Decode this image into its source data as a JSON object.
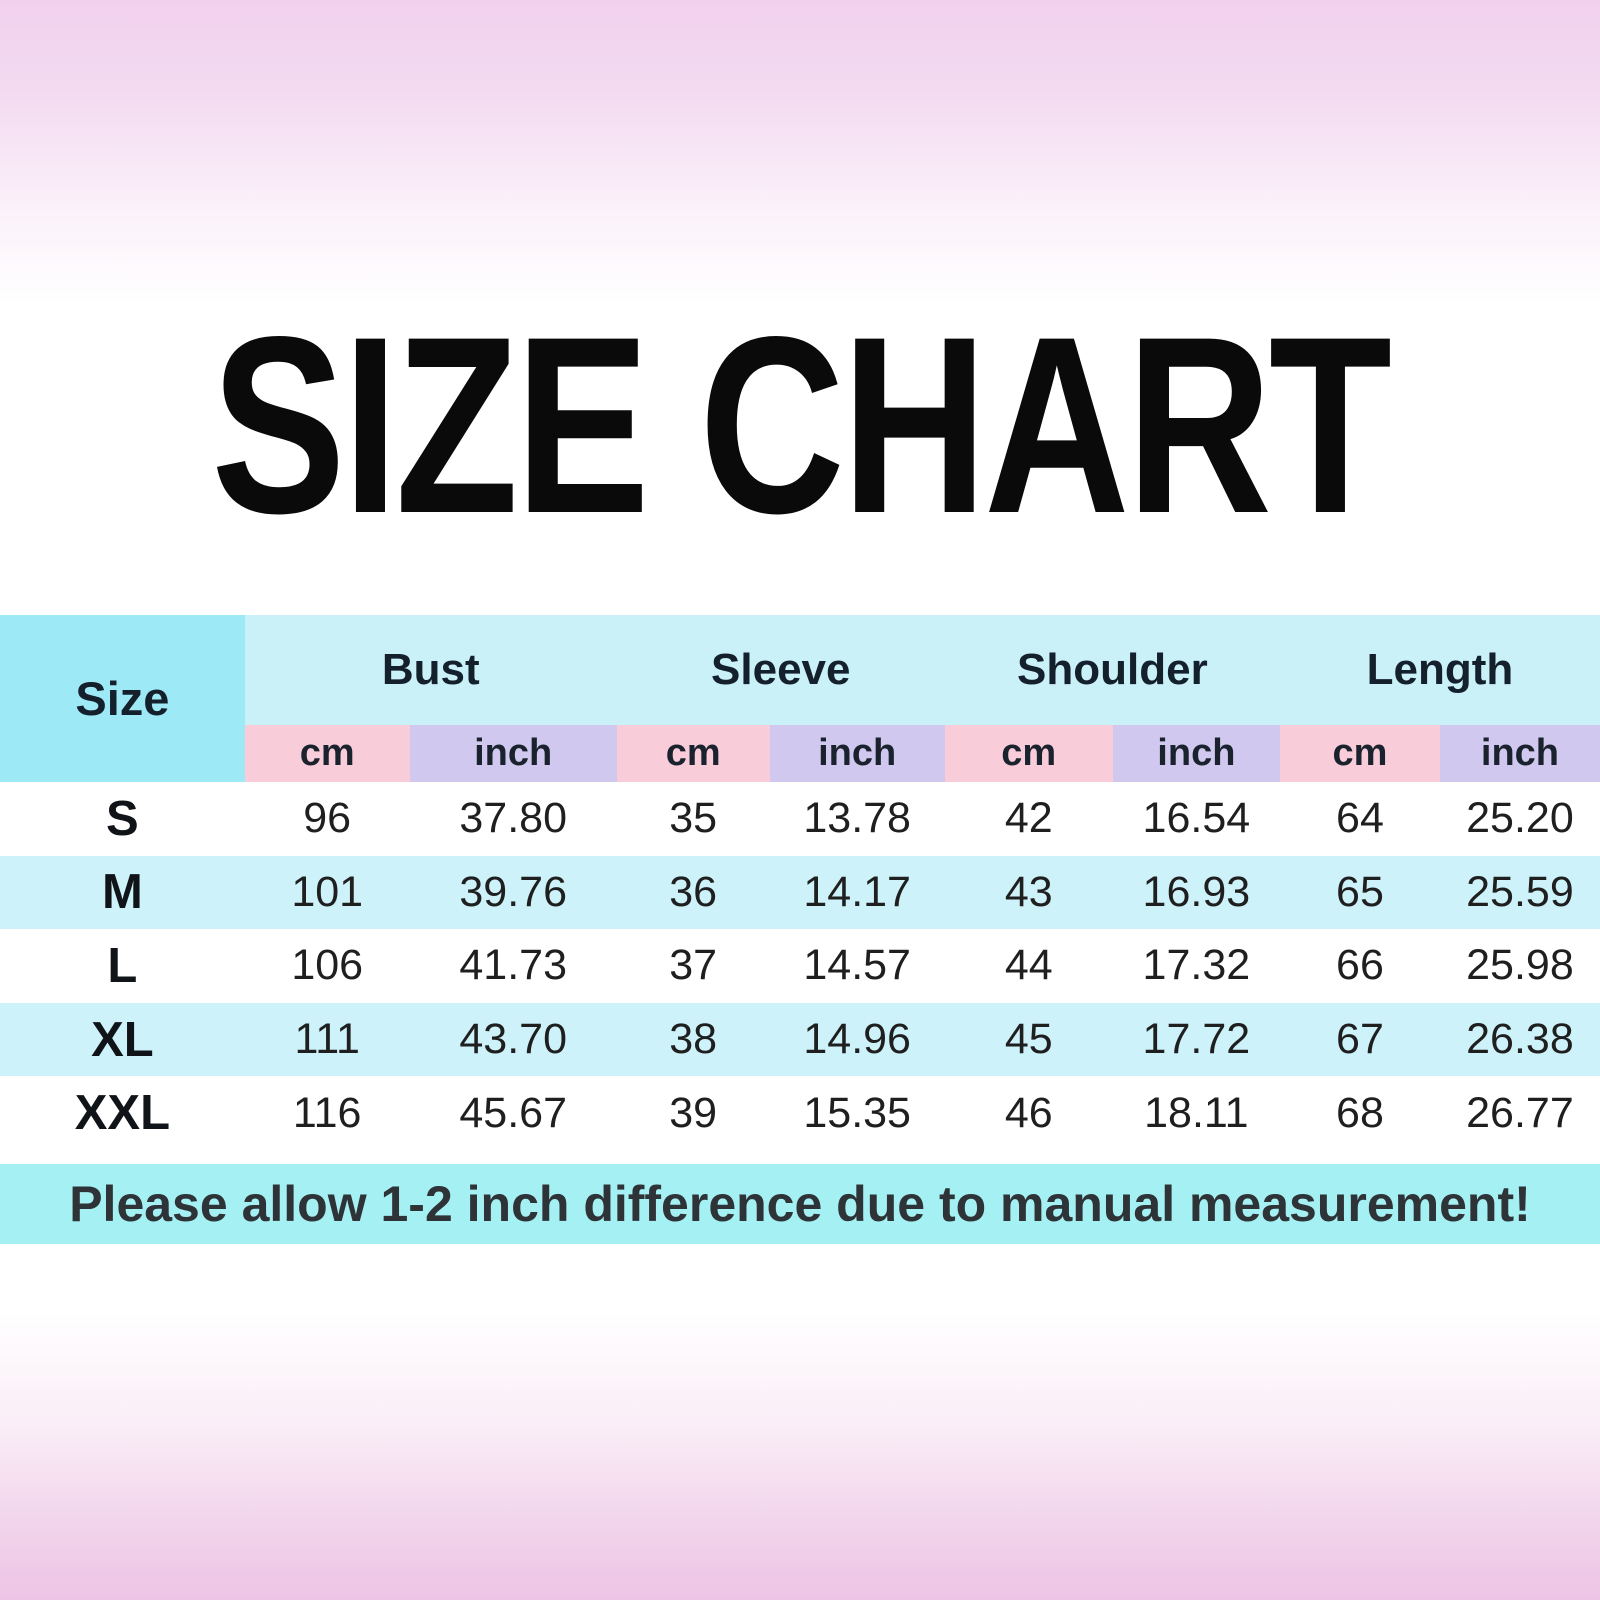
{
  "title": "SIZE CHART",
  "table": {
    "size_header": "Size",
    "groups": [
      {
        "label": "Bust"
      },
      {
        "label": "Sleeve"
      },
      {
        "label": "Shoulder"
      },
      {
        "label": "Length"
      }
    ],
    "units": [
      "cm",
      "inch",
      "cm",
      "inch",
      "cm",
      "inch",
      "cm",
      "inch"
    ],
    "rows": [
      {
        "size": "S",
        "values": [
          "96",
          "37.80",
          "35",
          "13.78",
          "42",
          "16.54",
          "64",
          "25.20"
        ]
      },
      {
        "size": "M",
        "values": [
          "101",
          "39.76",
          "36",
          "14.17",
          "43",
          "16.93",
          "65",
          "25.59"
        ]
      },
      {
        "size": "L",
        "values": [
          "106",
          "41.73",
          "37",
          "14.57",
          "44",
          "17.32",
          "66",
          "25.98"
        ]
      },
      {
        "size": "XL",
        "values": [
          "111",
          "43.70",
          "38",
          "14.96",
          "45",
          "17.72",
          "67",
          "26.38"
        ]
      },
      {
        "size": "XXL",
        "values": [
          "116",
          "45.67",
          "39",
          "15.35",
          "46",
          "18.11",
          "68",
          "26.77"
        ]
      }
    ]
  },
  "footer_note": "Please allow 1-2 inch difference due to manual measurement!",
  "colors": {
    "size_header_bg": "#9ee9f6",
    "group_header_bg": "#c9f1f7",
    "unit_cm_bg": "#f9ccd9",
    "unit_inch_bg": "#d0c8ee",
    "row_alt_bg": "#cdf2f9",
    "footer_bg": "#a5f0f3",
    "bg_top_pink": "#f1d0ed",
    "bg_bottom_pink": "#edc4e5",
    "title_color": "#0a0a0a",
    "green_artifact": "#1e7d33"
  },
  "chart_data": {
    "type": "table",
    "title": "SIZE CHART",
    "columns": [
      "Size",
      "Bust cm",
      "Bust inch",
      "Sleeve cm",
      "Sleeve inch",
      "Shoulder cm",
      "Shoulder inch",
      "Length cm",
      "Length inch"
    ],
    "rows": [
      [
        "S",
        96,
        37.8,
        35,
        13.78,
        42,
        16.54,
        64,
        25.2
      ],
      [
        "M",
        101,
        39.76,
        36,
        14.17,
        43,
        16.93,
        65,
        25.59
      ],
      [
        "L",
        106,
        41.73,
        37,
        14.57,
        44,
        17.32,
        66,
        25.98
      ],
      [
        "XL",
        111,
        43.7,
        38,
        14.96,
        45,
        17.72,
        67,
        26.38
      ],
      [
        "XXL",
        116,
        45.67,
        39,
        15.35,
        46,
        18.11,
        68,
        26.77
      ]
    ],
    "note": "Please allow 1-2 inch difference due to manual measurement!"
  }
}
